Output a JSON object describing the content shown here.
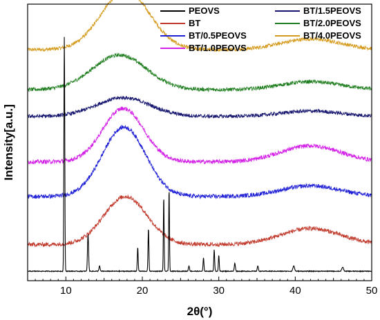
{
  "chart_data": {
    "type": "line",
    "title": "",
    "xlabel": "2θ(°)",
    "ylabel": "Intensity[a.u.]",
    "xlim": [
      5,
      50
    ],
    "x_ticks": [
      10,
      20,
      30,
      40,
      50
    ],
    "y_ticks_shown": false,
    "grid": false,
    "legend_position": "top",
    "series": [
      {
        "name": "PEOVS",
        "color": "#000000",
        "baseline": 0.02,
        "noise": 0.15,
        "peaks": [
          {
            "x": 9.8,
            "height": 0.88,
            "width": 0.08
          },
          {
            "x": 12.9,
            "height": 0.14,
            "width": 0.1
          },
          {
            "x": 14.4,
            "height": 0.02,
            "width": 0.1
          },
          {
            "x": 19.4,
            "height": 0.09,
            "width": 0.08
          },
          {
            "x": 20.8,
            "height": 0.16,
            "width": 0.08
          },
          {
            "x": 22.8,
            "height": 0.28,
            "width": 0.07
          },
          {
            "x": 23.5,
            "height": 0.31,
            "width": 0.07
          },
          {
            "x": 26.1,
            "height": 0.02,
            "width": 0.1
          },
          {
            "x": 28.0,
            "height": 0.05,
            "width": 0.08
          },
          {
            "x": 29.4,
            "height": 0.08,
            "width": 0.08
          },
          {
            "x": 30.0,
            "height": 0.06,
            "width": 0.08
          },
          {
            "x": 32.1,
            "height": 0.03,
            "width": 0.1
          },
          {
            "x": 35.1,
            "height": 0.02,
            "width": 0.1
          },
          {
            "x": 39.8,
            "height": 0.02,
            "width": 0.15
          },
          {
            "x": 46.2,
            "height": 0.015,
            "width": 0.15
          }
        ],
        "humps": []
      },
      {
        "name": "BT",
        "color": "#c0392b",
        "baseline": 0.12,
        "noise": 0.9,
        "peaks": [],
        "humps": [
          {
            "x": 17.8,
            "height": 0.18,
            "width": 4.0
          },
          {
            "x": 42.0,
            "height": 0.06,
            "width": 5.5
          }
        ]
      },
      {
        "name": "BT/0.5PEOVS",
        "color": "#1f1fd6",
        "baseline": 0.3,
        "noise": 0.9,
        "peaks": [],
        "humps": [
          {
            "x": 17.6,
            "height": 0.26,
            "width": 4.0
          },
          {
            "x": 42.0,
            "height": 0.04,
            "width": 5.5
          }
        ]
      },
      {
        "name": "BT/1.0PEOVS",
        "color": "#d21ee6",
        "baseline": 0.43,
        "noise": 0.9,
        "peaks": [],
        "humps": [
          {
            "x": 17.5,
            "height": 0.2,
            "width": 3.8
          },
          {
            "x": 42.0,
            "height": 0.06,
            "width": 5.5
          }
        ]
      },
      {
        "name": "BT/1.5PEOVS",
        "color": "#14146e",
        "baseline": 0.6,
        "noise": 0.8,
        "peaks": [],
        "humps": [
          {
            "x": 17.5,
            "height": 0.07,
            "width": 5.0
          },
          {
            "x": 42.0,
            "height": 0.02,
            "width": 5.5
          }
        ]
      },
      {
        "name": "BT/2.0PEOVS",
        "color": "#1e7d1e",
        "baseline": 0.7,
        "noise": 0.8,
        "peaks": [],
        "humps": [
          {
            "x": 17.0,
            "height": 0.13,
            "width": 5.0
          },
          {
            "x": 42.0,
            "height": 0.03,
            "width": 5.5
          }
        ]
      },
      {
        "name": "BT/4.0PEOVS",
        "color": "#d49a1c",
        "baseline": 0.85,
        "noise": 0.8,
        "peaks": [],
        "humps": [
          {
            "x": 17.8,
            "height": 0.22,
            "width": 4.5
          },
          {
            "x": 42.0,
            "height": 0.04,
            "width": 5.5
          }
        ]
      }
    ],
    "legend_columns": [
      [
        "PEOVS",
        "BT",
        "BT/0.5PEOVS",
        "BT/1.0PEOVS"
      ],
      [
        "BT/1.5PEOVS",
        "BT/2.0PEOVS",
        "BT/4.0PEOVS"
      ]
    ]
  }
}
